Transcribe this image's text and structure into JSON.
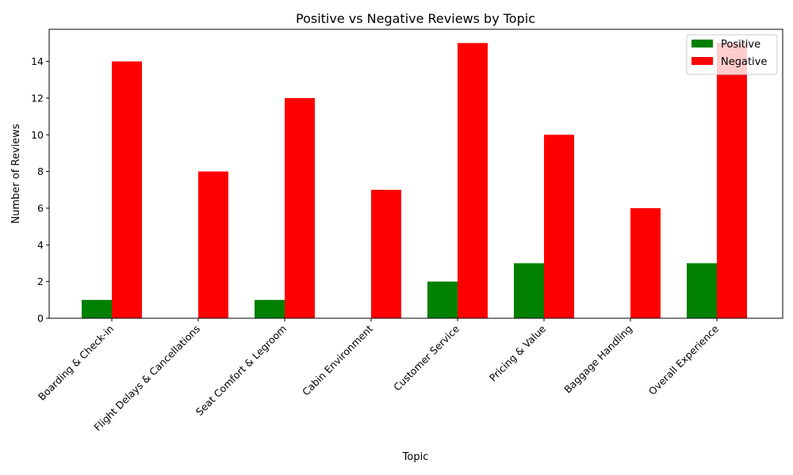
{
  "chart_data": {
    "type": "bar",
    "title": "Positive vs Negative Reviews by Topic",
    "xlabel": "Topic",
    "ylabel": "Number of Reviews",
    "categories": [
      "Boarding & Check-in",
      "Flight Delays & Cancellations",
      "Seat Comfort & Legroom",
      "Cabin Environment",
      "Customer Service",
      "Pricing & Value",
      "Baggage Handling",
      "Overall Experience"
    ],
    "series": [
      {
        "name": "Positive",
        "color": "#008000",
        "values": [
          1,
          0,
          1,
          0,
          2,
          3,
          0,
          3
        ]
      },
      {
        "name": "Negative",
        "color": "#ff0000",
        "values": [
          14,
          8,
          12,
          7,
          15,
          10,
          6,
          15
        ]
      }
    ],
    "ylim": [
      0,
      15.75
    ],
    "yticks": [
      0,
      2,
      4,
      6,
      8,
      10,
      12,
      14
    ],
    "grid": false,
    "legend_position": "top-right"
  }
}
